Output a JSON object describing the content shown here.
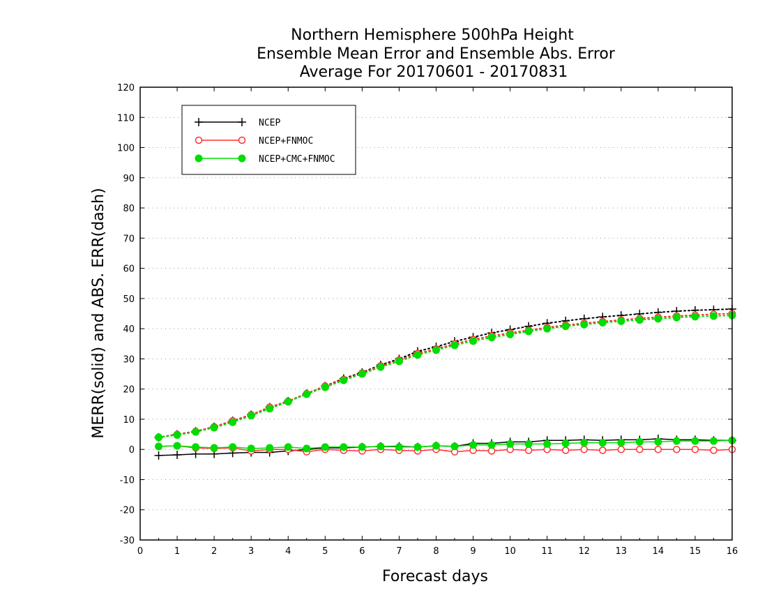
{
  "chart_data": {
    "type": "line",
    "title": [
      "Northern Hemisphere 500hPa Height",
      "Ensemble Mean Error and Ensemble Abs. Error",
      "Average For 20170601 - 20170831"
    ],
    "xlabel": "Forecast days",
    "ylabel": "MERR(solid) and ABS. ERR(dash)",
    "xlim": [
      0,
      16
    ],
    "ylim": [
      -30,
      120
    ],
    "xticks": [
      "0",
      "1",
      "2",
      "3",
      "4",
      "5",
      "6",
      "7",
      "8",
      "9",
      "10",
      "11",
      "12",
      "13",
      "14",
      "15",
      "16"
    ],
    "yticks": [
      "-30",
      "-20",
      "-10",
      "0",
      "10",
      "20",
      "30",
      "40",
      "50",
      "60",
      "70",
      "80",
      "90",
      "100",
      "110",
      "120"
    ],
    "grid": "horizontal dotted",
    "legend_position": "top-left",
    "x": [
      0.5,
      1,
      1.5,
      2,
      2.5,
      3,
      3.5,
      4,
      4.5,
      5,
      5.5,
      6,
      6.5,
      7,
      7.5,
      8,
      8.5,
      9,
      9.5,
      10,
      10.5,
      11,
      11.5,
      12,
      12.5,
      13,
      13.5,
      14,
      14.5,
      15,
      15.5,
      16
    ],
    "series": [
      {
        "name": "NCEP",
        "color": "#000000",
        "marker": "plus",
        "merr": [
          -2,
          -1.8,
          -1.5,
          -1.5,
          -1.2,
          -1,
          -1,
          -0.5,
          0,
          0.5,
          0.5,
          0.8,
          1,
          1,
          0.8,
          1.2,
          1,
          2,
          2,
          2.5,
          2.5,
          3,
          3,
          3.2,
          3,
          3.2,
          3.2,
          3.5,
          3.2,
          3.2,
          3,
          3
        ],
        "abs_err": [
          4,
          5,
          6,
          7.5,
          9.5,
          11.5,
          14,
          16,
          18.5,
          21,
          23.5,
          25.5,
          28,
          30,
          32.5,
          34,
          35.8,
          37.2,
          38.6,
          39.7,
          40.8,
          41.8,
          42.6,
          43.3,
          43.9,
          44.4,
          44.9,
          45.4,
          45.8,
          46.1,
          46.3,
          46.5
        ]
      },
      {
        "name": "NCEP+FNMOC",
        "color": "#ff3030",
        "marker": "open-circle",
        "merr": [
          1,
          1.2,
          0.5,
          0.3,
          0.5,
          -0.5,
          0,
          0,
          -0.8,
          0,
          -0.3,
          -0.5,
          0,
          -0.3,
          -0.5,
          0,
          -0.8,
          -0.3,
          -0.5,
          0,
          -0.3,
          0,
          -0.3,
          0,
          -0.3,
          0,
          0,
          0,
          0,
          0,
          -0.3,
          0
        ],
        "abs_err": [
          4,
          5,
          6,
          7.5,
          9.5,
          11.5,
          14,
          16,
          18.5,
          21,
          23.2,
          25.3,
          27.7,
          29.6,
          31.8,
          33.3,
          35,
          36.4,
          37.6,
          38.6,
          39.5,
          40.4,
          41.2,
          41.8,
          42.4,
          42.9,
          43.4,
          43.8,
          44.2,
          44.5,
          44.8,
          45
        ]
      },
      {
        "name": "NCEP+CMC+FNMOC",
        "color": "#00dd00",
        "marker": "filled-circle",
        "merr": [
          1,
          1.2,
          0.8,
          0.5,
          0.8,
          0.3,
          0.5,
          0.8,
          0.3,
          0.8,
          0.8,
          0.8,
          1,
          0.8,
          0.8,
          1.2,
          1,
          1.5,
          1.5,
          1.8,
          1.8,
          1.8,
          2,
          2.2,
          2.2,
          2.2,
          2.5,
          2.5,
          2.8,
          2.8,
          2.8,
          3
        ],
        "abs_err": [
          4,
          4.8,
          5.8,
          7.2,
          9,
          11.2,
          13.5,
          15.8,
          18.3,
          20.6,
          22.9,
          25,
          27.3,
          29.2,
          31.3,
          32.9,
          34.5,
          35.9,
          37.1,
          38.1,
          39.1,
          40,
          40.8,
          41.4,
          42,
          42.5,
          42.9,
          43.3,
          43.7,
          44,
          44.2,
          44.4
        ]
      }
    ]
  }
}
